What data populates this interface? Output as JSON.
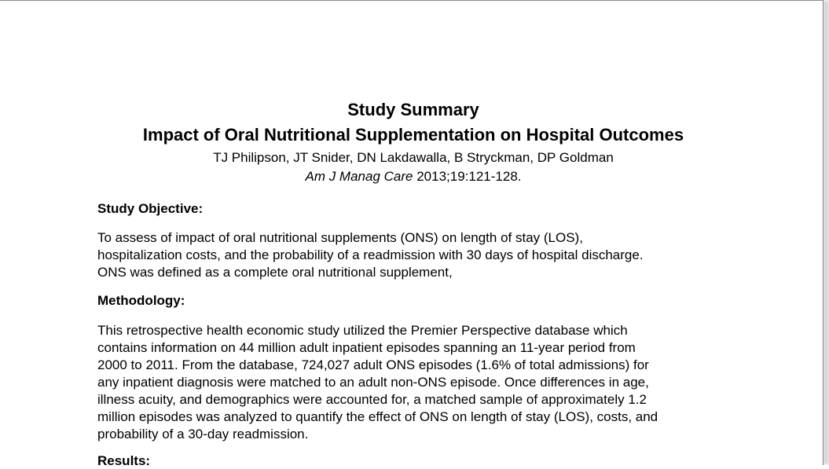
{
  "doc": {
    "title": "Study Summary",
    "subtitle": "Impact of Oral Nutritional Supplementation on Hospital Outcomes",
    "authors": "TJ Philipson, JT Snider, DN Lakdawalla, B Stryckman, DP Goldman",
    "citation_journal": "Am J Manag Care",
    "citation_rest": " 2013;19:121-128.",
    "sections": {
      "objective_heading": "Study Objective:",
      "objective_text": "To assess of impact of oral nutritional supplements (ONS) on length of stay (LOS),\nhospitalization costs, and the probability of a readmission with 30 days of hospital discharge.\nONS was defined as a complete oral nutritional supplement,",
      "methodology_heading": "Methodology:",
      "methodology_text": "This retrospective health economic study utilized the Premier Perspective database which\ncontains information on 44 million adult inpatient episodes spanning an 11-year period from\n2000 to 2011. From the database, 724,027 adult ONS episodes (1.6% of total admissions) for\nany inpatient diagnosis were matched to an adult non-ONS episode.  Once differences in age,\nillness acuity, and demographics were accounted for, a matched sample of approximately 1.2\nmillion episodes was analyzed to quantify the effect of ONS on length of stay (LOS), costs, and\nprobability of a 30-day readmission.",
      "results_heading": "Results:"
    }
  }
}
